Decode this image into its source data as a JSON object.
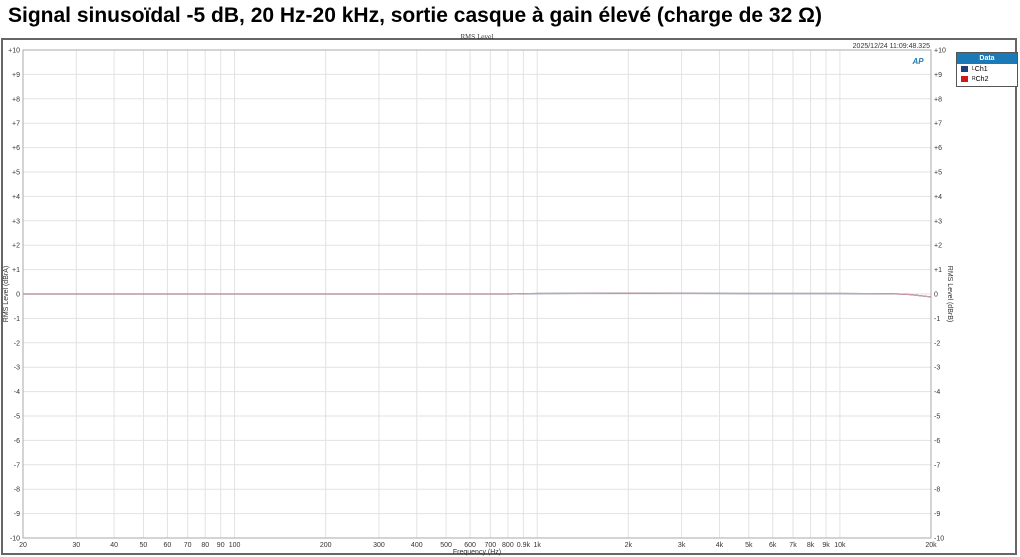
{
  "page_title": "Signal sinusoïdal -5 dB, 20 Hz-20 kHz, sortie casque à gain élevé (charge de 32 Ω)",
  "timestamp": "2025/12/24 11:09:48.325",
  "logo": "AP",
  "legend": {
    "title": "Data",
    "items": [
      {
        "prefix": "L",
        "label": "Ch1",
        "color": "#1f3f7a"
      },
      {
        "prefix": "R",
        "label": "Ch2",
        "color": "#d01818"
      }
    ]
  },
  "chart_data": {
    "type": "line",
    "title": "RMS Level",
    "xlabel": "Frequency (Hz)",
    "ylabel": "RMS Level (dBrA)",
    "ylabel_right": "RMS Level (dBrB)",
    "xscale": "log",
    "xlim": [
      20,
      20000
    ],
    "ylim": [
      -10,
      10
    ],
    "grid": true,
    "legend_position": "right",
    "xticks": [
      {
        "v": 20,
        "l": "20"
      },
      {
        "v": 30,
        "l": "30"
      },
      {
        "v": 40,
        "l": "40"
      },
      {
        "v": 50,
        "l": "50"
      },
      {
        "v": 60,
        "l": "60"
      },
      {
        "v": 70,
        "l": "70"
      },
      {
        "v": 80,
        "l": "80"
      },
      {
        "v": 90,
        "l": "90"
      },
      {
        "v": 100,
        "l": "100"
      },
      {
        "v": 200,
        "l": "200"
      },
      {
        "v": 300,
        "l": "300"
      },
      {
        "v": 400,
        "l": "400"
      },
      {
        "v": 500,
        "l": "500"
      },
      {
        "v": 600,
        "l": "600"
      },
      {
        "v": 700,
        "l": "700"
      },
      {
        "v": 800,
        "l": "800"
      },
      {
        "v": 900,
        "l": "0.9k"
      },
      {
        "v": 1000,
        "l": "1k"
      },
      {
        "v": 2000,
        "l": "2k"
      },
      {
        "v": 3000,
        "l": "3k"
      },
      {
        "v": 4000,
        "l": "4k"
      },
      {
        "v": 5000,
        "l": "5k"
      },
      {
        "v": 6000,
        "l": "6k"
      },
      {
        "v": 7000,
        "l": "7k"
      },
      {
        "v": 8000,
        "l": "8k"
      },
      {
        "v": 9000,
        "l": "9k"
      },
      {
        "v": 10000,
        "l": "10k"
      },
      {
        "v": 20000,
        "l": "20k"
      }
    ],
    "yticks": [
      "+10",
      "+9",
      "+8",
      "+7",
      "+6",
      "+5",
      "+4",
      "+3",
      "+2",
      "+1",
      "0",
      "-1",
      "-2",
      "-3",
      "-4",
      "-5",
      "-6",
      "-7",
      "-8",
      "-9",
      "-10"
    ],
    "series": [
      {
        "name": "Ch1",
        "color": "#1f3f7a",
        "x": [
          20,
          100,
          500,
          800,
          1000,
          2000,
          5000,
          10000,
          15000,
          17000,
          20000
        ],
        "y": [
          0,
          0,
          0,
          0,
          0.02,
          0.03,
          0.02,
          0.02,
          0.01,
          -0.02,
          -0.12
        ]
      },
      {
        "name": "Ch2",
        "color": "#d0a0a8",
        "x": [
          20,
          100,
          500,
          800,
          1000,
          2000,
          5000,
          10000,
          15000,
          17000,
          20000
        ],
        "y": [
          0,
          0,
          0,
          0,
          0.02,
          0.03,
          0.02,
          0.02,
          0.01,
          -0.02,
          -0.12
        ]
      }
    ]
  }
}
